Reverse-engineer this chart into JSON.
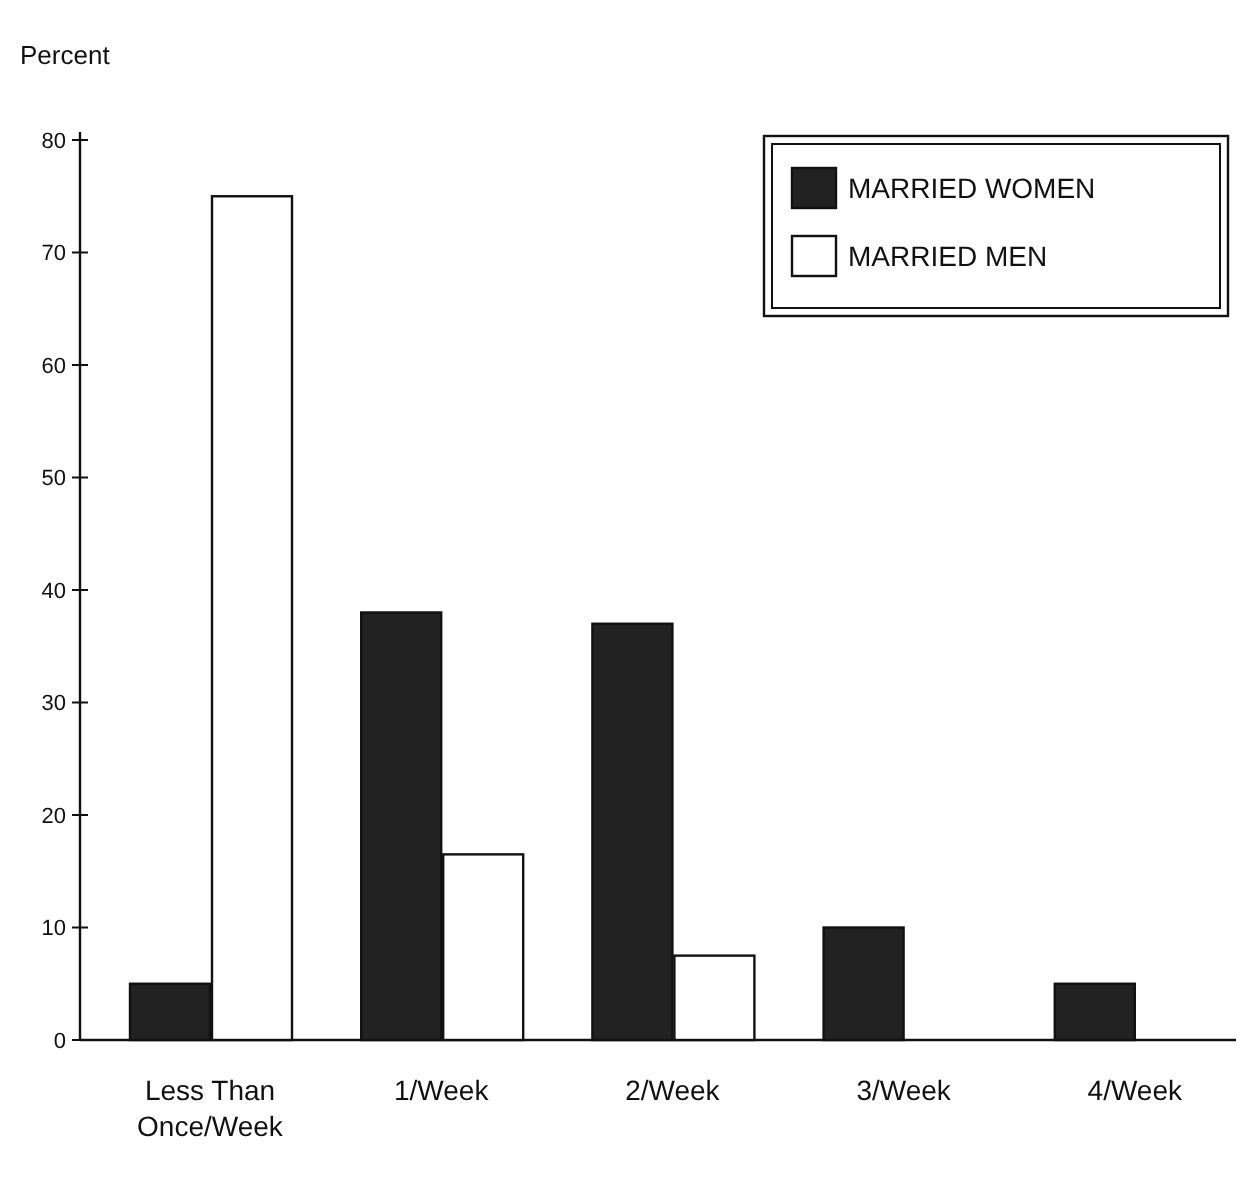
{
  "chart_data": {
    "type": "bar",
    "ylabel": "Percent",
    "categories": [
      "Less Than Once/Week",
      "1/Week",
      "2/Week",
      "3/Week",
      "4/Week"
    ],
    "series": [
      {
        "name": "MARRIED WOMEN",
        "color": "#222222",
        "values": [
          5,
          38,
          37,
          10,
          5
        ]
      },
      {
        "name": "MARRIED MEN",
        "color": "#ffffff",
        "values": [
          75,
          16.5,
          7.5,
          null,
          null
        ]
      }
    ],
    "ylim": [
      0,
      80
    ],
    "yticks": [
      0,
      10,
      20,
      30,
      40,
      50,
      60,
      70,
      80
    ],
    "legend": "top right",
    "grid": false
  }
}
